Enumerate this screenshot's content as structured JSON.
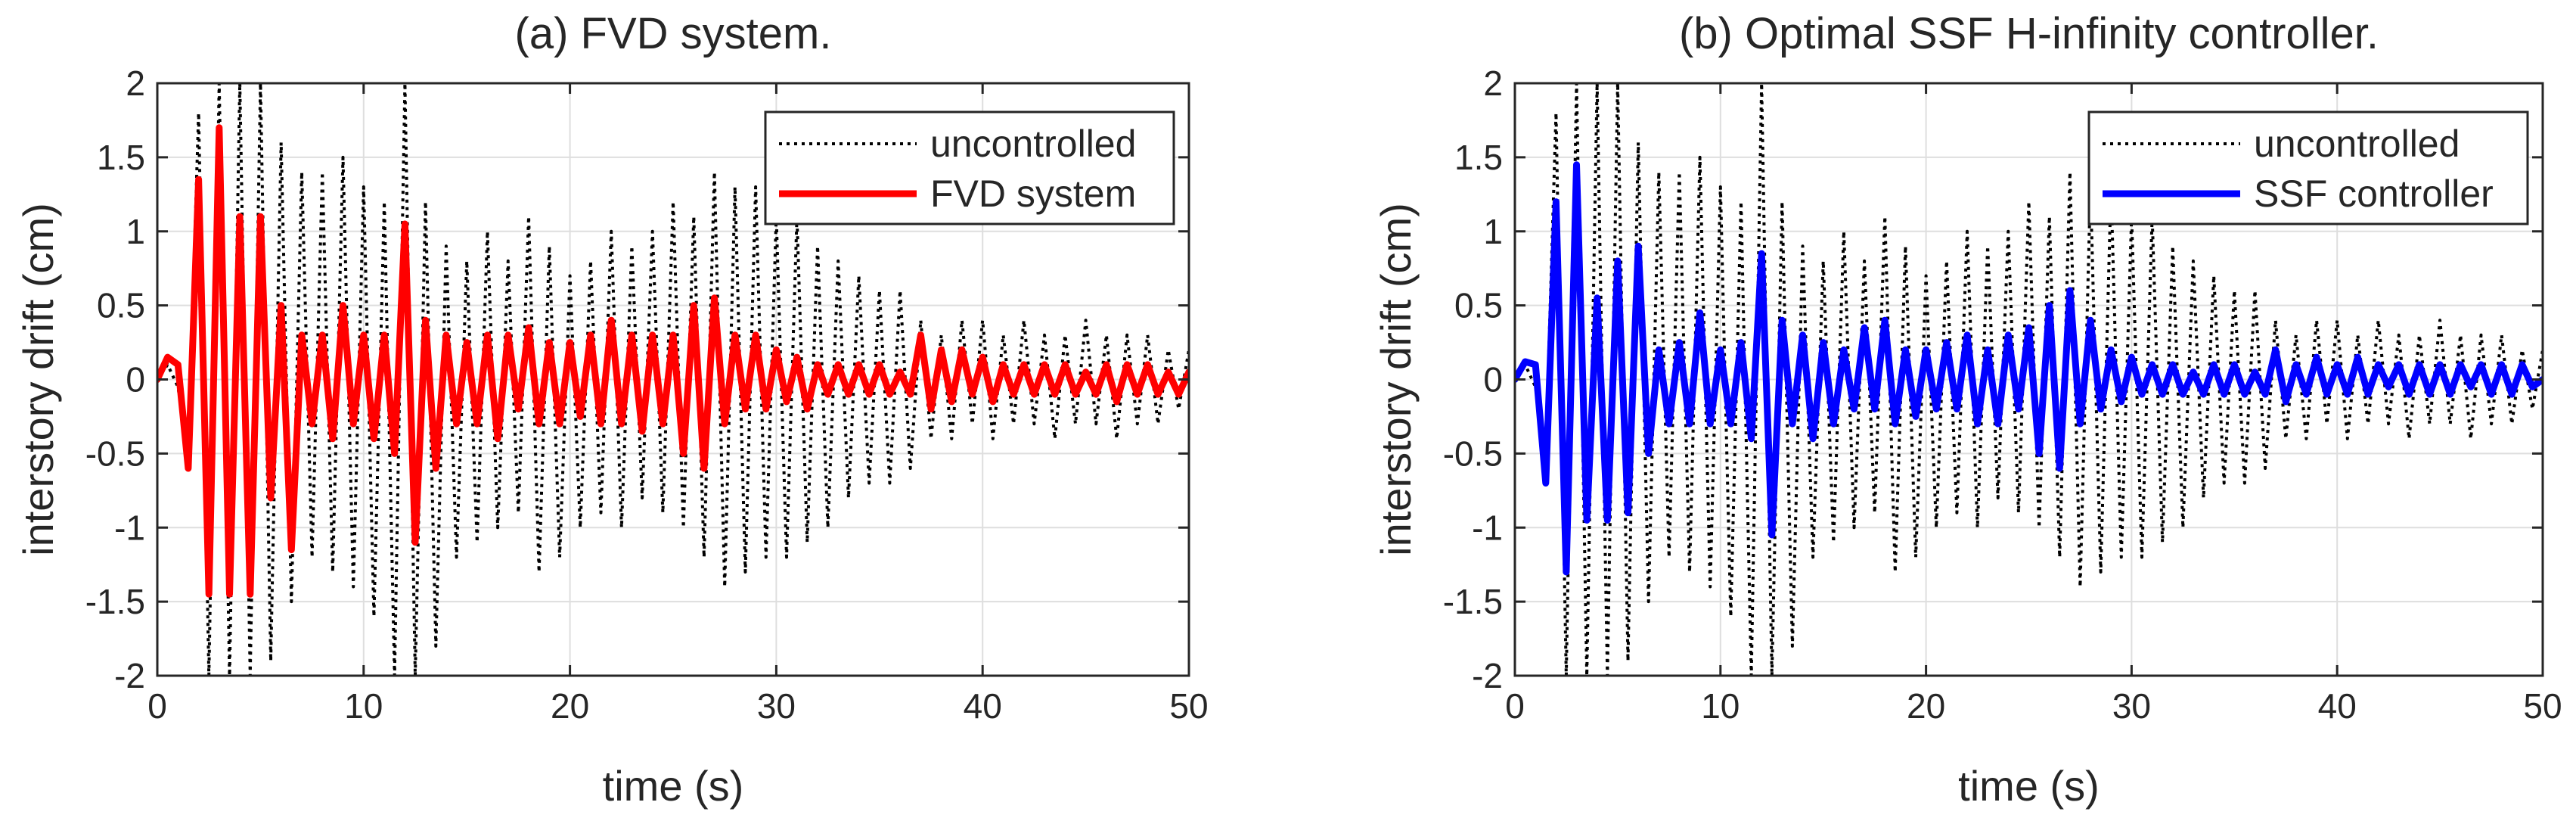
{
  "chart_data": [
    {
      "type": "line",
      "title": "(a) FVD system.",
      "xlabel": "time (s)",
      "ylabel": "interstory drift (cm)",
      "xlim": [
        0,
        50
      ],
      "ylim": [
        -2,
        2
      ],
      "xticks": [
        0,
        10,
        20,
        30,
        40,
        50
      ],
      "yticks": [
        -2,
        -1.5,
        -1,
        -0.5,
        0,
        0.5,
        1,
        1.5,
        2
      ],
      "grid": true,
      "legend_position": "top-right",
      "series": [
        {
          "name": "uncontrolled",
          "color": "#000000",
          "style": "dotted",
          "x": [
            0,
            0.5,
            1,
            1.5,
            2,
            2.5,
            3,
            3.5,
            4,
            4.5,
            5,
            5.5,
            6,
            6.5,
            7,
            7.5,
            8,
            8.5,
            9,
            9.5,
            10,
            10.5,
            11,
            11.5,
            12,
            12.5,
            13,
            13.5,
            14,
            14.5,
            15,
            15.5,
            16,
            16.5,
            17,
            17.5,
            18,
            18.5,
            19,
            19.5,
            20,
            20.5,
            21,
            21.5,
            22,
            22.5,
            23,
            23.5,
            24,
            24.5,
            25,
            25.5,
            26,
            26.5,
            27,
            27.5,
            28,
            28.5,
            29,
            29.5,
            30,
            30.5,
            31,
            31.5,
            32,
            32.5,
            33,
            33.5,
            34,
            34.5,
            35,
            35.5,
            36,
            36.5,
            37,
            37.5,
            38,
            38.5,
            39,
            39.5,
            40,
            40.5,
            41,
            41.5,
            42,
            42.5,
            43,
            43.5,
            44,
            44.5,
            45,
            45.5,
            46,
            46.5,
            47,
            47.5,
            48,
            48.5,
            49,
            49.5,
            50
          ],
          "values": [
            0,
            0.1,
            -0.05,
            -0.5,
            1.8,
            -2,
            2,
            -2,
            2,
            -2,
            2,
            -1.9,
            1.6,
            -1.5,
            1.4,
            -1.2,
            1.4,
            -1.3,
            1.5,
            -1.4,
            1.3,
            -1.6,
            1.2,
            -2,
            2,
            -2,
            1.2,
            -1.8,
            0.9,
            -1.2,
            0.8,
            -1.1,
            1,
            -1,
            0.8,
            -0.9,
            1.1,
            -1.3,
            0.9,
            -1.2,
            0.7,
            -1,
            0.8,
            -0.9,
            1,
            -1,
            0.9,
            -0.8,
            1,
            -0.9,
            1.2,
            -1,
            1.1,
            -1.2,
            1.4,
            -1.4,
            1.3,
            -1.3,
            1.3,
            -1.2,
            1.1,
            -1.2,
            1.1,
            -1.1,
            0.9,
            -1,
            0.8,
            -0.8,
            0.7,
            -0.7,
            0.6,
            -0.7,
            0.6,
            -0.6,
            0.4,
            -0.4,
            0.3,
            -0.4,
            0.4,
            -0.3,
            0.4,
            -0.4,
            0.3,
            -0.3,
            0.4,
            -0.3,
            0.3,
            -0.4,
            0.3,
            -0.3,
            0.4,
            -0.3,
            0.3,
            -0.4,
            0.3,
            -0.3,
            0.3,
            -0.3,
            0.2,
            -0.2,
            0.2
          ]
        },
        {
          "name": "FVD system",
          "color": "#ff0000",
          "style": "solid",
          "x": [
            0,
            0.5,
            1,
            1.5,
            2,
            2.5,
            3,
            3.5,
            4,
            4.5,
            5,
            5.5,
            6,
            6.5,
            7,
            7.5,
            8,
            8.5,
            9,
            9.5,
            10,
            10.5,
            11,
            11.5,
            12,
            12.5,
            13,
            13.5,
            14,
            14.5,
            15,
            15.5,
            16,
            16.5,
            17,
            17.5,
            18,
            18.5,
            19,
            19.5,
            20,
            20.5,
            21,
            21.5,
            22,
            22.5,
            23,
            23.5,
            24,
            24.5,
            25,
            25.5,
            26,
            26.5,
            27,
            27.5,
            28,
            28.5,
            29,
            29.5,
            30,
            30.5,
            31,
            31.5,
            32,
            32.5,
            33,
            33.5,
            34,
            34.5,
            35,
            35.5,
            36,
            36.5,
            37,
            37.5,
            38,
            38.5,
            39,
            39.5,
            40,
            40.5,
            41,
            41.5,
            42,
            42.5,
            43,
            43.5,
            44,
            44.5,
            45,
            45.5,
            46,
            46.5,
            47,
            47.5,
            48,
            48.5,
            49,
            49.5,
            50
          ],
          "values": [
            0,
            0.15,
            0.1,
            -0.6,
            1.35,
            -1.45,
            1.7,
            -1.45,
            1.1,
            -1.45,
            1.1,
            -0.8,
            0.5,
            -1.15,
            0.3,
            -0.3,
            0.3,
            -0.4,
            0.5,
            -0.3,
            0.3,
            -0.4,
            0.3,
            -0.5,
            1.05,
            -1.1,
            0.4,
            -0.6,
            0.3,
            -0.3,
            0.25,
            -0.3,
            0.3,
            -0.4,
            0.3,
            -0.2,
            0.35,
            -0.3,
            0.25,
            -0.3,
            0.25,
            -0.25,
            0.3,
            -0.3,
            0.4,
            -0.3,
            0.3,
            -0.35,
            0.3,
            -0.3,
            0.3,
            -0.5,
            0.5,
            -0.6,
            0.55,
            -0.3,
            0.3,
            -0.2,
            0.3,
            -0.2,
            0.2,
            -0.15,
            0.15,
            -0.2,
            0.1,
            -0.1,
            0.1,
            -0.1,
            0.1,
            -0.1,
            0.1,
            -0.1,
            0.05,
            -0.1,
            0.3,
            -0.2,
            0.2,
            -0.15,
            0.2,
            -0.1,
            0.15,
            -0.15,
            0.1,
            -0.1,
            0.1,
            -0.1,
            0.1,
            -0.1,
            0.1,
            -0.1,
            0.05,
            -0.1,
            0.1,
            -0.15,
            0.1,
            -0.1,
            0.1,
            -0.1,
            0.05,
            -0.1,
            0.05
          ]
        }
      ]
    },
    {
      "type": "line",
      "title": "(b) Optimal SSF H-infinity controller.",
      "xlabel": "time (s)",
      "ylabel": "interstory drift (cm)",
      "xlim": [
        0,
        50
      ],
      "ylim": [
        -2,
        2
      ],
      "xticks": [
        0,
        10,
        20,
        30,
        40,
        50
      ],
      "yticks": [
        -2,
        -1.5,
        -1,
        -0.5,
        0,
        0.5,
        1,
        1.5,
        2
      ],
      "grid": true,
      "legend_position": "top-right",
      "series": [
        {
          "name": "uncontrolled",
          "color": "#000000",
          "style": "dotted",
          "x": [
            0,
            0.5,
            1,
            1.5,
            2,
            2.5,
            3,
            3.5,
            4,
            4.5,
            5,
            5.5,
            6,
            6.5,
            7,
            7.5,
            8,
            8.5,
            9,
            9.5,
            10,
            10.5,
            11,
            11.5,
            12,
            12.5,
            13,
            13.5,
            14,
            14.5,
            15,
            15.5,
            16,
            16.5,
            17,
            17.5,
            18,
            18.5,
            19,
            19.5,
            20,
            20.5,
            21,
            21.5,
            22,
            22.5,
            23,
            23.5,
            24,
            24.5,
            25,
            25.5,
            26,
            26.5,
            27,
            27.5,
            28,
            28.5,
            29,
            29.5,
            30,
            30.5,
            31,
            31.5,
            32,
            32.5,
            33,
            33.5,
            34,
            34.5,
            35,
            35.5,
            36,
            36.5,
            37,
            37.5,
            38,
            38.5,
            39,
            39.5,
            40,
            40.5,
            41,
            41.5,
            42,
            42.5,
            43,
            43.5,
            44,
            44.5,
            45,
            45.5,
            46,
            46.5,
            47,
            47.5,
            48,
            48.5,
            49,
            49.5,
            50
          ],
          "values": [
            0,
            0.1,
            -0.05,
            -0.5,
            1.8,
            -2,
            2,
            -2,
            2,
            -2,
            2,
            -1.9,
            1.6,
            -1.5,
            1.4,
            -1.2,
            1.4,
            -1.3,
            1.5,
            -1.4,
            1.3,
            -1.6,
            1.2,
            -2,
            2,
            -2,
            1.2,
            -1.8,
            0.9,
            -1.2,
            0.8,
            -1.1,
            1,
            -1,
            0.8,
            -0.9,
            1.1,
            -1.3,
            0.9,
            -1.2,
            0.7,
            -1,
            0.8,
            -0.9,
            1,
            -1,
            0.9,
            -0.8,
            1,
            -0.9,
            1.2,
            -1,
            1.1,
            -1.2,
            1.4,
            -1.4,
            1.3,
            -1.3,
            1.3,
            -1.2,
            1.1,
            -1.2,
            1.1,
            -1.1,
            0.9,
            -1,
            0.8,
            -0.8,
            0.7,
            -0.7,
            0.6,
            -0.7,
            0.6,
            -0.6,
            0.4,
            -0.4,
            0.3,
            -0.4,
            0.4,
            -0.3,
            0.4,
            -0.4,
            0.3,
            -0.3,
            0.4,
            -0.3,
            0.3,
            -0.4,
            0.3,
            -0.3,
            0.4,
            -0.3,
            0.3,
            -0.4,
            0.3,
            -0.3,
            0.3,
            -0.3,
            0.2,
            -0.2,
            0.2
          ]
        },
        {
          "name": "SSF controller",
          "color": "#0000ff",
          "style": "solid",
          "x": [
            0,
            0.5,
            1,
            1.5,
            2,
            2.5,
            3,
            3.5,
            4,
            4.5,
            5,
            5.5,
            6,
            6.5,
            7,
            7.5,
            8,
            8.5,
            9,
            9.5,
            10,
            10.5,
            11,
            11.5,
            12,
            12.5,
            13,
            13.5,
            14,
            14.5,
            15,
            15.5,
            16,
            16.5,
            17,
            17.5,
            18,
            18.5,
            19,
            19.5,
            20,
            20.5,
            21,
            21.5,
            22,
            22.5,
            23,
            23.5,
            24,
            24.5,
            25,
            25.5,
            26,
            26.5,
            27,
            27.5,
            28,
            28.5,
            29,
            29.5,
            30,
            30.5,
            31,
            31.5,
            32,
            32.5,
            33,
            33.5,
            34,
            34.5,
            35,
            35.5,
            36,
            36.5,
            37,
            37.5,
            38,
            38.5,
            39,
            39.5,
            40,
            40.5,
            41,
            41.5,
            42,
            42.5,
            43,
            43.5,
            44,
            44.5,
            45,
            45.5,
            46,
            46.5,
            47,
            47.5,
            48,
            48.5,
            49,
            49.5,
            50
          ],
          "values": [
            0,
            0.12,
            0.1,
            -0.7,
            1.2,
            -1.3,
            1.45,
            -0.95,
            0.55,
            -0.95,
            0.8,
            -0.9,
            0.9,
            -0.5,
            0.2,
            -0.3,
            0.25,
            -0.3,
            0.45,
            -0.3,
            0.2,
            -0.3,
            0.25,
            -0.4,
            0.85,
            -1.05,
            0.4,
            -0.3,
            0.3,
            -0.4,
            0.25,
            -0.3,
            0.2,
            -0.2,
            0.35,
            -0.2,
            0.4,
            -0.3,
            0.2,
            -0.25,
            0.2,
            -0.2,
            0.25,
            -0.2,
            0.3,
            -0.3,
            0.2,
            -0.3,
            0.3,
            -0.2,
            0.35,
            -0.5,
            0.5,
            -0.6,
            0.6,
            -0.3,
            0.4,
            -0.2,
            0.2,
            -0.15,
            0.15,
            -0.1,
            0.1,
            -0.1,
            0.1,
            -0.1,
            0.05,
            -0.1,
            0.1,
            -0.1,
            0.1,
            -0.1,
            0.05,
            -0.1,
            0.2,
            -0.15,
            0.1,
            -0.1,
            0.15,
            -0.1,
            0.1,
            -0.1,
            0.15,
            -0.1,
            0.1,
            -0.05,
            0.1,
            -0.1,
            0.1,
            -0.1,
            0.1,
            -0.1,
            0.1,
            -0.05,
            0.1,
            -0.1,
            0.1,
            -0.1,
            0.1,
            -0.05,
            0
          ]
        }
      ]
    }
  ]
}
